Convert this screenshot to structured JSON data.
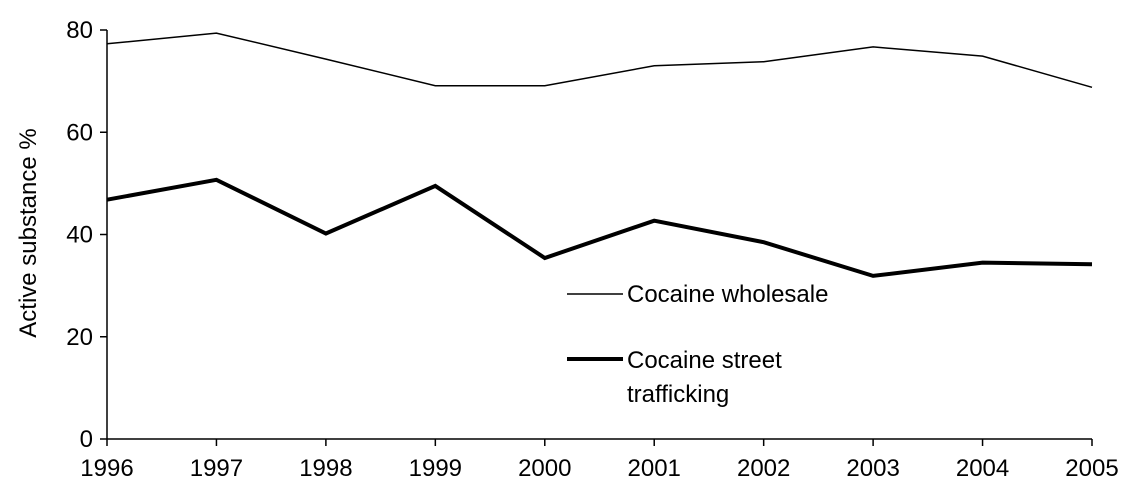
{
  "chart_data": {
    "type": "line",
    "title": "",
    "xlabel": "",
    "ylabel": "Active substance %",
    "x": [
      "1996",
      "1997",
      "1998",
      "1999",
      "2000",
      "2001",
      "2002",
      "2003",
      "2004",
      "2005"
    ],
    "ylim": [
      0,
      80
    ],
    "yticks": [
      "0",
      "20",
      "40",
      "60",
      "80"
    ],
    "grid": false,
    "legend_position": "center-right",
    "series": [
      {
        "name": "Cocaine wholesale",
        "values": [
          77.3,
          79.4,
          74.3,
          69.1,
          69.1,
          73.0,
          73.8,
          76.7,
          74.9,
          68.8
        ],
        "color": "#000000",
        "line_style": "thin"
      },
      {
        "name": "Cocaine street trafficking",
        "name_lines": [
          "Cocaine street",
          "trafficking"
        ],
        "values": [
          46.8,
          50.7,
          40.2,
          49.5,
          35.4,
          42.7,
          38.5,
          31.9,
          34.5,
          34.2
        ],
        "color": "#000000",
        "line_style": "thick"
      }
    ]
  }
}
